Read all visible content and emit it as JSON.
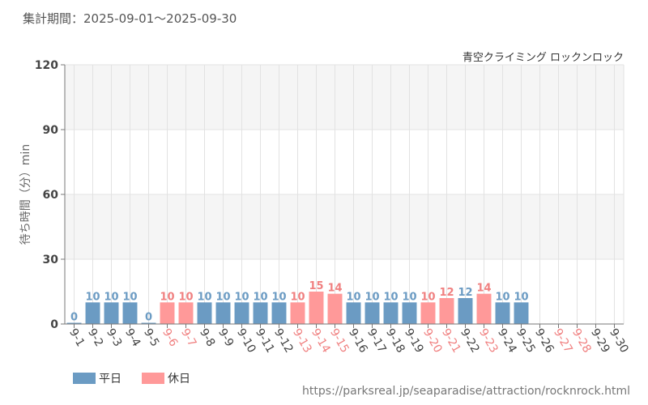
{
  "header": {
    "period": "集計期間：2025-09-01～2025-09-30",
    "attraction": "青空クライミング ロックンロック"
  },
  "footer": {
    "source_url": "https://parksreal.jp/seaparadise/attraction/rocknrock.html"
  },
  "chart_data": {
    "type": "bar",
    "title": "",
    "xlabel": "",
    "ylabel": "待ち時間（分）min",
    "ylim": [
      0,
      120
    ],
    "yticks": [
      0,
      30,
      60,
      90,
      120
    ],
    "grid": true,
    "legend_position": "bottom-left",
    "colors": {
      "weekday": "#6b9bc3",
      "holiday": "#ff9999",
      "holiday_label": "#f08080"
    },
    "legend": [
      {
        "key": "weekday",
        "label": "平日"
      },
      {
        "key": "holiday",
        "label": "休日"
      }
    ],
    "categories": [
      "9-1",
      "9-2",
      "9-3",
      "9-4",
      "9-5",
      "9-6",
      "9-7",
      "9-8",
      "9-9",
      "9-10",
      "9-11",
      "9-12",
      "9-13",
      "9-14",
      "9-15",
      "9-16",
      "9-17",
      "9-18",
      "9-19",
      "9-20",
      "9-21",
      "9-22",
      "9-23",
      "9-24",
      "9-25",
      "9-26",
      "9-27",
      "9-28",
      "9-29",
      "9-30"
    ],
    "day_types": [
      "weekday",
      "weekday",
      "weekday",
      "weekday",
      "weekday",
      "holiday",
      "holiday",
      "weekday",
      "weekday",
      "weekday",
      "weekday",
      "weekday",
      "holiday",
      "holiday",
      "holiday",
      "weekday",
      "weekday",
      "weekday",
      "weekday",
      "holiday",
      "holiday",
      "weekday",
      "holiday",
      "weekday",
      "weekday",
      "weekday",
      "holiday",
      "holiday",
      "weekday",
      "weekday"
    ],
    "values": [
      0,
      10,
      10,
      10,
      0,
      10,
      10,
      10,
      10,
      10,
      10,
      10,
      10,
      15,
      14,
      10,
      10,
      10,
      10,
      10,
      12,
      12,
      14,
      10,
      10,
      null,
      null,
      null,
      null,
      null
    ]
  }
}
